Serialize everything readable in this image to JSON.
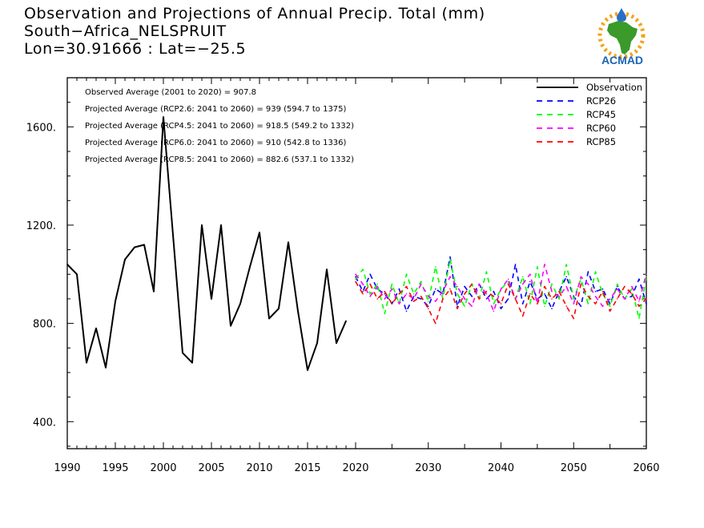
{
  "header": {
    "line1": "Observation and Projections of Annual Precip. Total (mm)",
    "line2": "South−Africa_NELSPRUIT",
    "line3": "Lon=30.91666 : Lat=−25.5"
  },
  "logo": {
    "text": "ACMAD",
    "colors": {
      "africa": "#3a9a2a",
      "text": "#1a66b3",
      "sun": "#f2a51a",
      "drop": "#2b6fc4"
    }
  },
  "stats": [
    "Observed Average (2001 to 2020) = 907.8",
    "Projected Average (RCP2.6: 2041 to 2060) = 939 (594.7 to 1375)",
    "Projected Average (RCP4.5: 2041 to 2060) = 918.5 (549.2 to 1332)",
    "Projected Average (RCP6.0: 2041 to 2060) = 910 (542.8 to 1336)",
    "Projected Average (RCP8.5: 2041 to 2060) = 882.6 (537.1 to 1332)"
  ],
  "chart_data": {
    "type": "line",
    "xlim": [
      1990,
      2060
    ],
    "ylim": [
      290,
      1800
    ],
    "y_ticks": [
      400,
      800,
      1200,
      1600
    ],
    "y_tick_labels": [
      "400.",
      "800.",
      "1200.",
      "1600."
    ],
    "x_ticks": [
      1990,
      1995,
      2000,
      2005,
      2010,
      2015,
      2020,
      2030,
      2040,
      2050,
      2060
    ],
    "x_tick_labels": [
      "1990",
      "1995",
      "2000",
      "2005",
      "2010",
      "2015",
      "2020",
      "2030",
      "2040",
      "2050",
      "2060"
    ],
    "x_minor_ticks": [
      2025,
      2035,
      2045,
      2055
    ],
    "x_break": 2020,
    "series": [
      {
        "name": "Observation",
        "color": "#000000",
        "dash": "solid",
        "x": [
          1990,
          1991,
          1992,
          1993,
          1994,
          1995,
          1996,
          1997,
          1998,
          1999,
          2000,
          2001,
          2002,
          2003,
          2004,
          2005,
          2006,
          2007,
          2008,
          2009,
          2010,
          2011,
          2012,
          2013,
          2014,
          2015,
          2016,
          2017,
          2018,
          2019,
          2020
        ],
        "values": [
          1040,
          1000,
          640,
          780,
          620,
          890,
          1060,
          1110,
          1120,
          930,
          1640,
          1160,
          680,
          640,
          1200,
          900,
          1200,
          790,
          880,
          1030,
          1170,
          820,
          860,
          1130,
          850,
          610,
          720,
          1020,
          720,
          810,
          null
        ]
      },
      {
        "name": "RCP26",
        "color": "#0000ff",
        "dash": "dashed",
        "x": [
          2020,
          2021,
          2022,
          2023,
          2024,
          2025,
          2026,
          2027,
          2028,
          2029,
          2030,
          2031,
          2032,
          2033,
          2034,
          2035,
          2036,
          2037,
          2038,
          2039,
          2040,
          2041,
          2042,
          2043,
          2044,
          2045,
          2046,
          2047,
          2048,
          2049,
          2050,
          2051,
          2052,
          2053,
          2054,
          2055,
          2056,
          2057,
          2058,
          2059,
          2060
        ],
        "values": [
          990,
          930,
          1000,
          940,
          920,
          880,
          940,
          850,
          910,
          900,
          870,
          940,
          920,
          1070,
          870,
          950,
          910,
          960,
          900,
          930,
          860,
          900,
          1040,
          880,
          970,
          900,
          920,
          860,
          930,
          990,
          910,
          870,
          1010,
          930,
          940,
          880,
          950,
          900,
          910,
          980,
          880
        ]
      },
      {
        "name": "RCP45",
        "color": "#00ff00",
        "dash": "dashed",
        "x": [
          2020,
          2021,
          2022,
          2023,
          2024,
          2025,
          2026,
          2027,
          2028,
          2029,
          2030,
          2031,
          2032,
          2033,
          2034,
          2035,
          2036,
          2037,
          2038,
          2039,
          2040,
          2041,
          2042,
          2043,
          2044,
          2045,
          2046,
          2047,
          2048,
          2049,
          2050,
          2051,
          2052,
          2053,
          2054,
          2055,
          2056,
          2057,
          2058,
          2059,
          2060
        ],
        "values": [
          980,
          1020,
          920,
          960,
          840,
          960,
          880,
          1000,
          920,
          970,
          890,
          1030,
          900,
          1060,
          920,
          870,
          960,
          900,
          1010,
          880,
          940,
          970,
          900,
          990,
          880,
          1030,
          870,
          960,
          900,
          1040,
          900,
          980,
          880,
          1010,
          920,
          870,
          960,
          900,
          940,
          820,
          990
        ]
      },
      {
        "name": "RCP60",
        "color": "#ff00ff",
        "dash": "dashed",
        "x": [
          2020,
          2021,
          2022,
          2023,
          2024,
          2025,
          2026,
          2027,
          2028,
          2029,
          2030,
          2031,
          2032,
          2033,
          2034,
          2035,
          2036,
          2037,
          2038,
          2039,
          2040,
          2041,
          2042,
          2043,
          2044,
          2045,
          2046,
          2047,
          2048,
          2049,
          2050,
          2051,
          2052,
          2053,
          2054,
          2055,
          2056,
          2057,
          2058,
          2059,
          2060
        ],
        "values": [
          1000,
          960,
          910,
          950,
          900,
          940,
          880,
          920,
          900,
          960,
          910,
          890,
          930,
          990,
          950,
          900,
          870,
          960,
          920,
          850,
          940,
          980,
          900,
          960,
          1000,
          880,
          1040,
          930,
          910,
          950,
          880,
          990,
          960,
          910,
          870,
          900,
          940,
          900,
          950,
          890,
          1000
        ]
      },
      {
        "name": "RCP85",
        "color": "#ff0000",
        "dash": "dashed",
        "x": [
          2020,
          2021,
          2022,
          2023,
          2024,
          2025,
          2026,
          2027,
          2028,
          2029,
          2030,
          2031,
          2032,
          2033,
          2034,
          2035,
          2036,
          2037,
          2038,
          2039,
          2040,
          2041,
          2042,
          2043,
          2044,
          2045,
          2046,
          2047,
          2048,
          2049,
          2050,
          2051,
          2052,
          2053,
          2054,
          2055,
          2056,
          2057,
          2058,
          2059,
          2060
        ],
        "values": [
          970,
          920,
          960,
          900,
          930,
          880,
          920,
          950,
          890,
          910,
          860,
          800,
          900,
          940,
          860,
          920,
          960,
          900,
          930,
          910,
          880,
          960,
          900,
          830,
          920,
          880,
          950,
          900,
          930,
          870,
          820,
          960,
          910,
          880,
          930,
          850,
          900,
          950,
          920,
          870,
          900
        ]
      }
    ],
    "legend": {
      "placement": "top-right"
    },
    "grid": false
  }
}
